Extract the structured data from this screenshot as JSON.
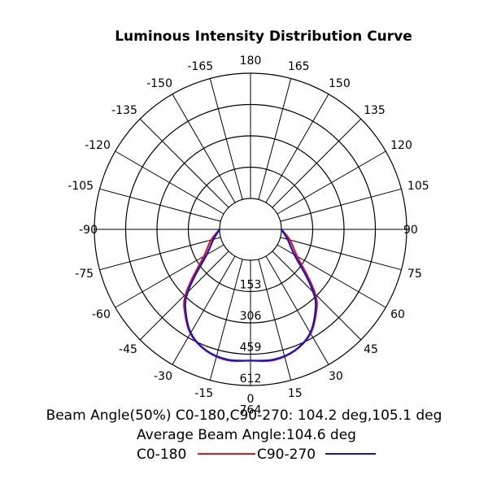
{
  "chart_data": {
    "type": "polar-line",
    "title": "Luminous Intensity Distribution Curve",
    "angle_labels": [
      "0",
      "15",
      "30",
      "45",
      "60",
      "75",
      "90",
      "105",
      "120",
      "135",
      "150",
      "165",
      "180",
      "-165",
      "-150",
      "-135",
      "-120",
      "-105",
      "-90",
      "-75",
      "-60",
      "-45",
      "-30",
      "-15"
    ],
    "angles": [
      0,
      15,
      30,
      45,
      60,
      75,
      90,
      105,
      120,
      135,
      150,
      165,
      180,
      -165,
      -150,
      -135,
      -120,
      -105,
      -90,
      -75,
      -60,
      -45,
      -30,
      -15
    ],
    "radial_ticks": [
      153,
      306,
      459,
      612,
      764
    ],
    "radial_tick_labels": [
      "153",
      "306",
      "459",
      "612",
      "764"
    ],
    "rmax": 764,
    "series": [
      {
        "name": "C0-180",
        "color": "#e0141e",
        "points": [
          [
            -90,
            0
          ],
          [
            -75,
            60
          ],
          [
            -60,
            140
          ],
          [
            -50,
            275
          ],
          [
            -45,
            370
          ],
          [
            -40,
            440
          ],
          [
            -30,
            545
          ],
          [
            -20,
            600
          ],
          [
            -10,
            622
          ],
          [
            0,
            612
          ],
          [
            10,
            622
          ],
          [
            20,
            600
          ],
          [
            30,
            545
          ],
          [
            40,
            440
          ],
          [
            45,
            370
          ],
          [
            50,
            275
          ],
          [
            60,
            140
          ],
          [
            75,
            60
          ],
          [
            90,
            0
          ]
        ]
      },
      {
        "name": "C90-270",
        "color": "#1414c8",
        "points": [
          [
            -90,
            0
          ],
          [
            -75,
            45
          ],
          [
            -60,
            120
          ],
          [
            -50,
            255
          ],
          [
            -45,
            352
          ],
          [
            -40,
            430
          ],
          [
            -30,
            540
          ],
          [
            -20,
            598
          ],
          [
            -10,
            618
          ],
          [
            0,
            612
          ],
          [
            10,
            618
          ],
          [
            20,
            598
          ],
          [
            30,
            540
          ],
          [
            40,
            430
          ],
          [
            45,
            352
          ],
          [
            50,
            255
          ],
          [
            60,
            120
          ],
          [
            75,
            45
          ],
          [
            90,
            0
          ]
        ]
      }
    ]
  },
  "footer": {
    "beam_angle_line": "Beam Angle(50%) C0-180,C90-270: 104.2 deg,105.1 deg",
    "average_line": "Average Beam Angle:104.6 deg",
    "legend_c0": "C0-180",
    "legend_c90": "C90-270"
  }
}
